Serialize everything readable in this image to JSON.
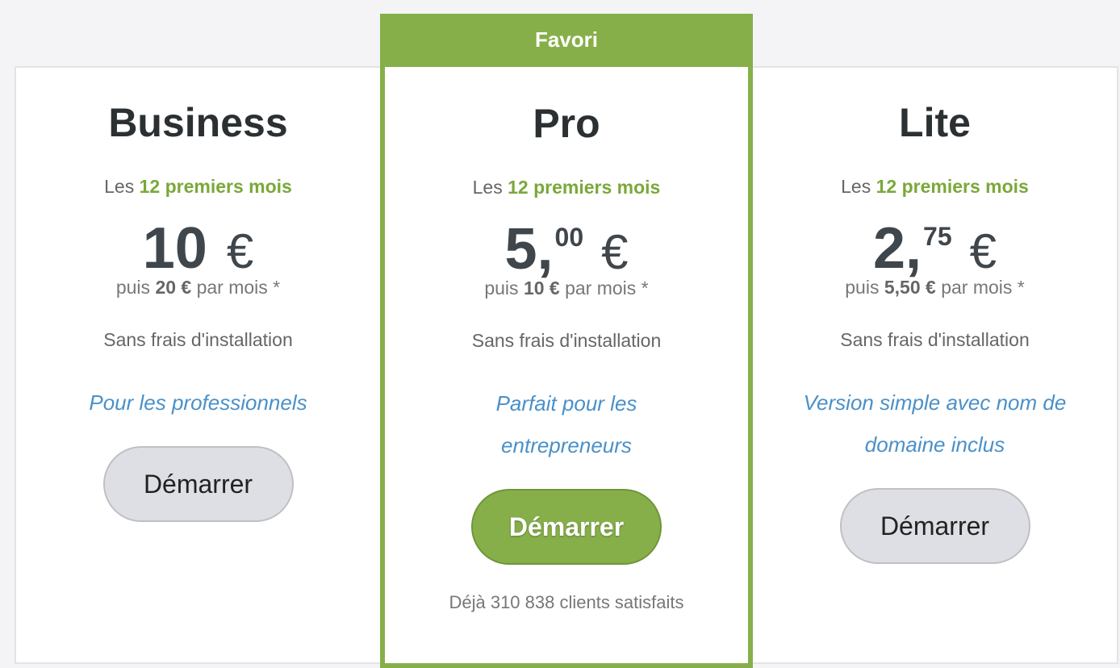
{
  "accent": "#86af49",
  "plans": [
    {
      "name": "Business",
      "intro_prefix": "Les",
      "intro_highlight": "12 premiers mois",
      "price_int": "10",
      "price_dec": "",
      "currency": "€",
      "then_prefix": "puis",
      "then_price": "20 €",
      "then_suffix": "par mois *",
      "setup": "Sans frais d'installation",
      "tagline": "Pour les professionnels",
      "cta": "Démarrer"
    },
    {
      "badge": "Favori",
      "name": "Pro",
      "intro_prefix": "Les",
      "intro_highlight": "12 premiers mois",
      "price_int": "5,",
      "price_dec": "00",
      "currency": "€",
      "then_prefix": "puis",
      "then_price": "10 €",
      "then_suffix": "par mois *",
      "setup": "Sans frais d'installation",
      "tagline": "Parfait pour les entrepreneurs",
      "cta": "Démarrer",
      "satisfied": "Déjà 310 838 clients satisfaits"
    },
    {
      "name": "Lite",
      "intro_prefix": "Les",
      "intro_highlight": "12 premiers mois",
      "price_int": "2,",
      "price_dec": "75",
      "currency": "€",
      "then_prefix": "puis",
      "then_price": "5,50 €",
      "then_suffix": "par mois *",
      "setup": "Sans frais d'installation",
      "tagline": "Version simple avec nom de domaine inclus",
      "cta": "Démarrer"
    }
  ]
}
